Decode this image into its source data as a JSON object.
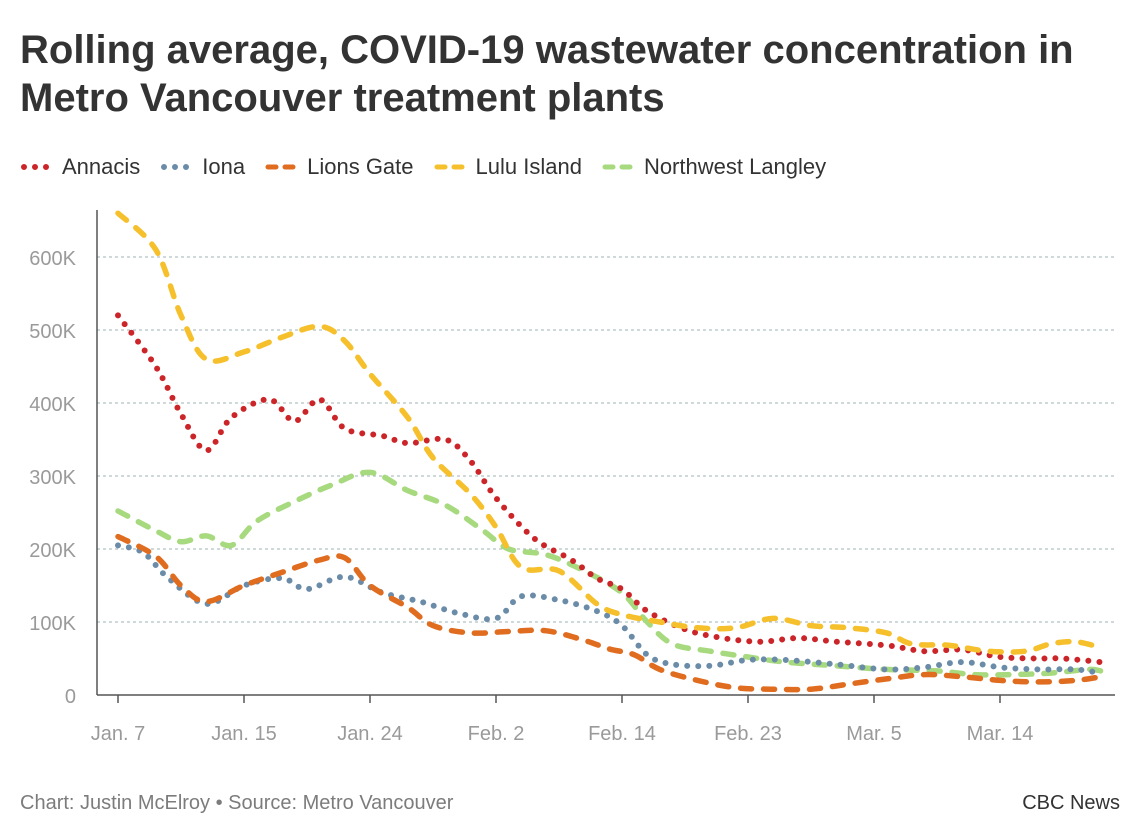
{
  "chart_data": {
    "type": "line",
    "title": "Rolling average, COVID-19 wastewater concentration in Metro Vancouver treatment plants",
    "xlabel": "",
    "ylabel": "",
    "ylim": [
      0,
      650000
    ],
    "xlim": [
      7,
      85
    ],
    "x_ticks": [
      {
        "label": "Jan. 7",
        "x": 7
      },
      {
        "label": "Jan. 15",
        "x": 17
      },
      {
        "label": "Jan. 24",
        "x": 27
      },
      {
        "label": "Feb. 2",
        "x": 37
      },
      {
        "label": "Feb. 14",
        "x": 47
      },
      {
        "label": "Feb. 23",
        "x": 57
      },
      {
        "label": "Mar. 5",
        "x": 67
      },
      {
        "label": "Mar. 14",
        "x": 77
      }
    ],
    "y_ticks": [
      {
        "label": "0",
        "value": 0
      },
      {
        "label": "100K",
        "value": 100000
      },
      {
        "label": "200K",
        "value": 200000
      },
      {
        "label": "300K",
        "value": 300000
      },
      {
        "label": "400K",
        "value": 400000
      },
      {
        "label": "500K",
        "value": 500000
      },
      {
        "label": "600K",
        "value": 600000
      }
    ],
    "series": [
      {
        "name": "Annacis",
        "color": "#cc2529",
        "dash": "dotted",
        "points": [
          [
            7,
            520000
          ],
          [
            10,
            450000
          ],
          [
            12,
            385000
          ],
          [
            14,
            335000
          ],
          [
            16,
            380000
          ],
          [
            19,
            405000
          ],
          [
            21,
            375000
          ],
          [
            23,
            405000
          ],
          [
            25,
            365000
          ],
          [
            28,
            355000
          ],
          [
            30,
            345000
          ],
          [
            33,
            350000
          ],
          [
            35,
            320000
          ],
          [
            37,
            270000
          ],
          [
            40,
            215000
          ],
          [
            43,
            185000
          ],
          [
            45,
            160000
          ],
          [
            47,
            145000
          ],
          [
            49,
            115000
          ],
          [
            52,
            90000
          ],
          [
            55,
            78000
          ],
          [
            58,
            73000
          ],
          [
            61,
            78000
          ],
          [
            64,
            73000
          ],
          [
            68,
            68000
          ],
          [
            71,
            60000
          ],
          [
            74,
            62000
          ],
          [
            77,
            52000
          ],
          [
            80,
            50000
          ],
          [
            82,
            50000
          ],
          [
            85,
            45000
          ]
        ]
      },
      {
        "name": "Iona",
        "color": "#6b8ca8",
        "dash": "dotted",
        "points": [
          [
            7,
            205000
          ],
          [
            9,
            195000
          ],
          [
            11,
            160000
          ],
          [
            14,
            125000
          ],
          [
            17,
            150000
          ],
          [
            20,
            160000
          ],
          [
            22,
            145000
          ],
          [
            25,
            162000
          ],
          [
            28,
            140000
          ],
          [
            31,
            128000
          ],
          [
            34,
            112000
          ],
          [
            37,
            105000
          ],
          [
            39,
            135000
          ],
          [
            42,
            130000
          ],
          [
            45,
            115000
          ],
          [
            47,
            95000
          ],
          [
            49,
            55000
          ],
          [
            51,
            42000
          ],
          [
            54,
            40000
          ],
          [
            57,
            48000
          ],
          [
            60,
            48000
          ],
          [
            64,
            42000
          ],
          [
            68,
            35000
          ],
          [
            71,
            38000
          ],
          [
            74,
            45000
          ],
          [
            77,
            38000
          ],
          [
            80,
            35000
          ],
          [
            83,
            35000
          ],
          [
            85,
            30000
          ]
        ]
      },
      {
        "name": "Lions Gate",
        "color": "#e06c1f",
        "dash": "dashed",
        "points": [
          [
            7,
            217000
          ],
          [
            10,
            190000
          ],
          [
            12,
            150000
          ],
          [
            14,
            128000
          ],
          [
            17,
            150000
          ],
          [
            20,
            168000
          ],
          [
            23,
            185000
          ],
          [
            25,
            188000
          ],
          [
            27,
            150000
          ],
          [
            30,
            120000
          ],
          [
            32,
            95000
          ],
          [
            35,
            85000
          ],
          [
            38,
            87000
          ],
          [
            41,
            88000
          ],
          [
            44,
            75000
          ],
          [
            46,
            63000
          ],
          [
            48,
            55000
          ],
          [
            50,
            35000
          ],
          [
            53,
            20000
          ],
          [
            56,
            10000
          ],
          [
            59,
            8000
          ],
          [
            62,
            8000
          ],
          [
            65,
            15000
          ],
          [
            68,
            22000
          ],
          [
            71,
            28000
          ],
          [
            74,
            25000
          ],
          [
            77,
            20000
          ],
          [
            80,
            18000
          ],
          [
            83,
            20000
          ],
          [
            85,
            25000
          ]
        ]
      },
      {
        "name": "Lulu Island",
        "color": "#f6c02c",
        "dash": "dashed",
        "points": [
          [
            7,
            660000
          ],
          [
            10,
            610000
          ],
          [
            12,
            520000
          ],
          [
            14,
            460000
          ],
          [
            17,
            470000
          ],
          [
            20,
            490000
          ],
          [
            23,
            505000
          ],
          [
            25,
            485000
          ],
          [
            27,
            440000
          ],
          [
            30,
            380000
          ],
          [
            32,
            325000
          ],
          [
            35,
            275000
          ],
          [
            37,
            230000
          ],
          [
            39,
            175000
          ],
          [
            42,
            170000
          ],
          [
            45,
            125000
          ],
          [
            47,
            110000
          ],
          [
            50,
            100000
          ],
          [
            53,
            92000
          ],
          [
            56,
            92000
          ],
          [
            59,
            105000
          ],
          [
            62,
            95000
          ],
          [
            65,
            92000
          ],
          [
            68,
            85000
          ],
          [
            70,
            70000
          ],
          [
            73,
            68000
          ],
          [
            76,
            60000
          ],
          [
            79,
            60000
          ],
          [
            81,
            70000
          ],
          [
            83,
            73000
          ],
          [
            85,
            65000
          ]
        ]
      },
      {
        "name": "Northwest Langley",
        "color": "#a7d97e",
        "dash": "dashed",
        "points": [
          [
            7,
            252000
          ],
          [
            10,
            225000
          ],
          [
            12,
            210000
          ],
          [
            14,
            218000
          ],
          [
            16,
            205000
          ],
          [
            18,
            238000
          ],
          [
            21,
            265000
          ],
          [
            24,
            288000
          ],
          [
            27,
            305000
          ],
          [
            30,
            280000
          ],
          [
            33,
            260000
          ],
          [
            36,
            225000
          ],
          [
            38,
            200000
          ],
          [
            41,
            192000
          ],
          [
            44,
            170000
          ],
          [
            47,
            140000
          ],
          [
            49,
            100000
          ],
          [
            51,
            70000
          ],
          [
            54,
            60000
          ],
          [
            57,
            52000
          ],
          [
            60,
            45000
          ],
          [
            64,
            40000
          ],
          [
            68,
            35000
          ],
          [
            72,
            33000
          ],
          [
            75,
            28000
          ],
          [
            78,
            28000
          ],
          [
            81,
            30000
          ],
          [
            84,
            35000
          ],
          [
            85,
            33000
          ]
        ]
      }
    ]
  },
  "legend": {
    "items": [
      {
        "label": "Annacis"
      },
      {
        "label": "Iona"
      },
      {
        "label": "Lions Gate"
      },
      {
        "label": "Lulu Island"
      },
      {
        "label": "Northwest Langley"
      }
    ]
  },
  "footer": {
    "credit": "Chart: Justin McElroy • Source: Metro Vancouver",
    "brand": "CBC News"
  }
}
